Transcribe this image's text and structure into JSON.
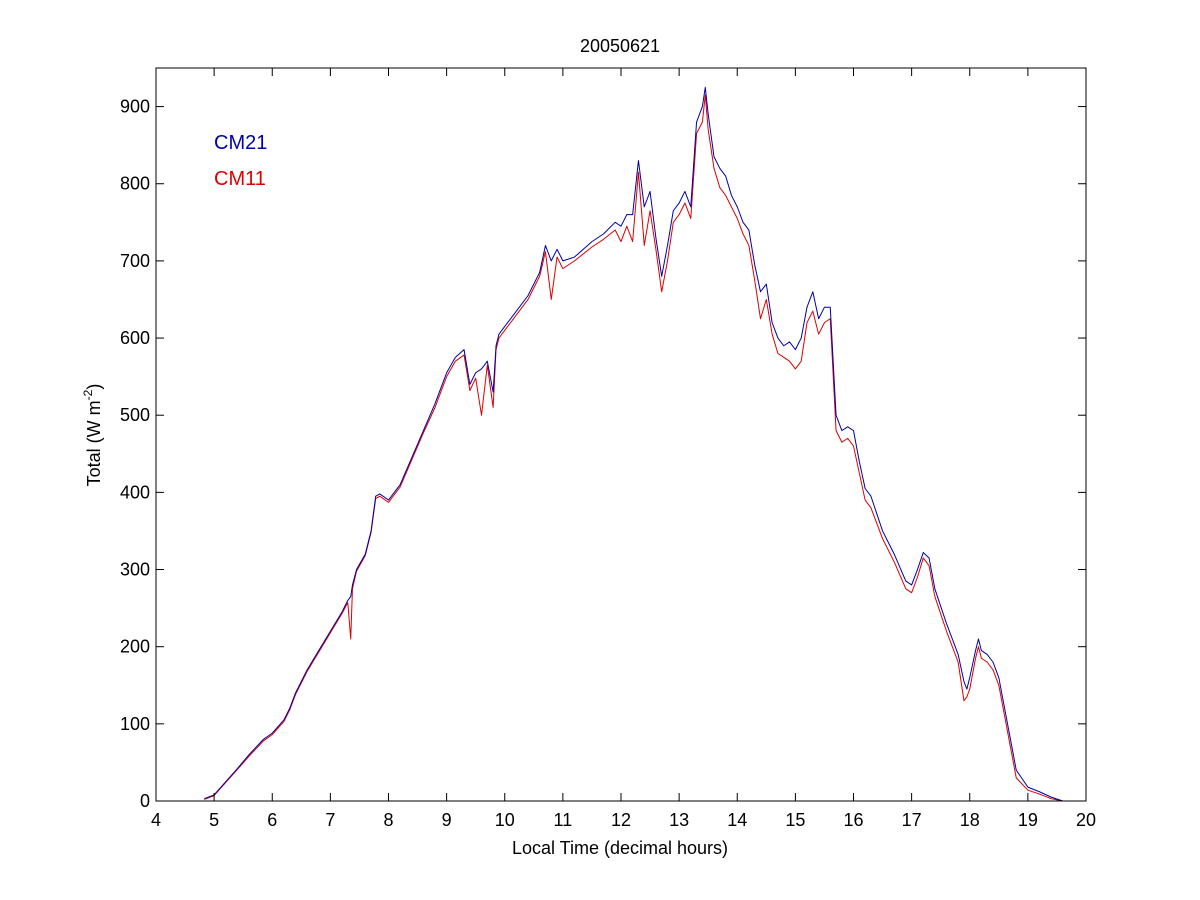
{
  "chart_data": {
    "type": "line",
    "title": "20050621",
    "xlabel": "Local Time (decimal hours)",
    "ylabel": {
      "prefix": "Total (W m",
      "superscript": "-2",
      "suffix": ")"
    },
    "xlim": [
      4,
      20
    ],
    "ylim": [
      0,
      950
    ],
    "xticks": [
      4,
      5,
      6,
      7,
      8,
      9,
      10,
      11,
      12,
      13,
      14,
      15,
      16,
      17,
      18,
      19,
      20
    ],
    "yticks": [
      0,
      100,
      200,
      300,
      400,
      500,
      600,
      700,
      800,
      900
    ],
    "grid": false,
    "legend": {
      "placement": "top-left",
      "style": "colored text"
    },
    "series": [
      {
        "name": "CM21",
        "color": "#0000aa",
        "x": [
          4.83,
          5.0,
          5.2,
          5.4,
          5.6,
          5.85,
          6.0,
          6.2,
          6.3,
          6.4,
          6.6,
          6.8,
          7.0,
          7.2,
          7.3,
          7.35,
          7.38,
          7.45,
          7.6,
          7.7,
          7.78,
          7.85,
          8.0,
          8.2,
          8.4,
          8.6,
          8.8,
          9.0,
          9.15,
          9.3,
          9.4,
          9.5,
          9.6,
          9.7,
          9.8,
          9.85,
          9.9,
          10.0,
          10.2,
          10.4,
          10.6,
          10.7,
          10.8,
          10.9,
          11.0,
          11.2,
          11.5,
          11.7,
          11.9,
          12.0,
          12.1,
          12.2,
          12.3,
          12.4,
          12.5,
          12.6,
          12.7,
          12.8,
          12.9,
          13.0,
          13.1,
          13.2,
          13.3,
          13.4,
          13.45,
          13.5,
          13.6,
          13.7,
          13.8,
          13.9,
          14.0,
          14.1,
          14.2,
          14.3,
          14.4,
          14.5,
          14.6,
          14.7,
          14.8,
          14.9,
          15.0,
          15.1,
          15.2,
          15.3,
          15.4,
          15.5,
          15.6,
          15.7,
          15.8,
          15.9,
          16.0,
          16.1,
          16.2,
          16.3,
          16.5,
          16.7,
          16.9,
          17.0,
          17.1,
          17.2,
          17.3,
          17.4,
          17.6,
          17.8,
          17.9,
          17.95,
          18.0,
          18.1,
          18.15,
          18.2,
          18.3,
          18.4,
          18.5,
          18.6,
          18.7,
          18.8,
          19.0,
          19.2,
          19.4,
          19.6
        ],
        "y": [
          3,
          8,
          25,
          42,
          60,
          80,
          88,
          105,
          120,
          140,
          170,
          195,
          220,
          245,
          260,
          265,
          280,
          300,
          320,
          350,
          395,
          398,
          390,
          410,
          445,
          480,
          515,
          555,
          575,
          585,
          540,
          555,
          560,
          570,
          530,
          590,
          605,
          615,
          635,
          655,
          685,
          720,
          700,
          715,
          700,
          705,
          725,
          735,
          750,
          745,
          760,
          760,
          830,
          770,
          790,
          730,
          680,
          720,
          765,
          775,
          790,
          770,
          880,
          900,
          925,
          890,
          835,
          820,
          810,
          785,
          770,
          750,
          740,
          695,
          660,
          670,
          620,
          600,
          590,
          595,
          585,
          600,
          640,
          660,
          625,
          640,
          640,
          500,
          480,
          485,
          480,
          440,
          405,
          395,
          350,
          320,
          285,
          280,
          300,
          322,
          315,
          275,
          230,
          190,
          155,
          145,
          160,
          195,
          210,
          195,
          190,
          180,
          160,
          120,
          80,
          40,
          18,
          12,
          5,
          0
        ]
      },
      {
        "name": "CM11",
        "color": "#dd0000",
        "x": [
          4.83,
          5.0,
          5.2,
          5.4,
          5.6,
          5.85,
          6.0,
          6.2,
          6.3,
          6.4,
          6.6,
          6.8,
          7.0,
          7.2,
          7.3,
          7.35,
          7.38,
          7.45,
          7.6,
          7.7,
          7.78,
          7.85,
          8.0,
          8.2,
          8.4,
          8.6,
          8.8,
          9.0,
          9.15,
          9.3,
          9.4,
          9.5,
          9.6,
          9.7,
          9.8,
          9.85,
          9.9,
          10.0,
          10.2,
          10.4,
          10.6,
          10.7,
          10.8,
          10.9,
          11.0,
          11.2,
          11.5,
          11.7,
          11.9,
          12.0,
          12.1,
          12.2,
          12.3,
          12.4,
          12.5,
          12.6,
          12.7,
          12.8,
          12.9,
          13.0,
          13.1,
          13.2,
          13.3,
          13.4,
          13.45,
          13.5,
          13.6,
          13.7,
          13.8,
          13.9,
          14.0,
          14.1,
          14.2,
          14.3,
          14.4,
          14.5,
          14.6,
          14.7,
          14.8,
          14.9,
          15.0,
          15.1,
          15.2,
          15.3,
          15.4,
          15.5,
          15.6,
          15.7,
          15.8,
          15.9,
          16.0,
          16.1,
          16.2,
          16.3,
          16.5,
          16.7,
          16.9,
          17.0,
          17.1,
          17.2,
          17.3,
          17.4,
          17.6,
          17.8,
          17.9,
          17.95,
          18.0,
          18.1,
          18.15,
          18.2,
          18.3,
          18.4,
          18.5,
          18.6,
          18.7,
          18.8,
          19.0,
          19.2,
          19.4,
          19.6
        ],
        "y": [
          2,
          7,
          24,
          41,
          58,
          78,
          86,
          103,
          118,
          138,
          168,
          193,
          218,
          243,
          257,
          210,
          275,
          298,
          318,
          348,
          392,
          395,
          387,
          407,
          442,
          477,
          510,
          550,
          570,
          578,
          532,
          548,
          500,
          565,
          510,
          585,
          600,
          610,
          630,
          650,
          680,
          712,
          650,
          705,
          690,
          700,
          718,
          728,
          740,
          725,
          745,
          725,
          815,
          720,
          765,
          715,
          660,
          700,
          750,
          760,
          775,
          755,
          865,
          880,
          915,
          870,
          820,
          795,
          785,
          770,
          755,
          735,
          720,
          675,
          625,
          650,
          605,
          580,
          575,
          570,
          560,
          570,
          620,
          635,
          605,
          620,
          625,
          480,
          465,
          470,
          460,
          425,
          390,
          380,
          340,
          310,
          275,
          270,
          290,
          315,
          305,
          265,
          220,
          180,
          130,
          135,
          145,
          185,
          200,
          185,
          180,
          170,
          150,
          110,
          70,
          30,
          14,
          9,
          3,
          0
        ]
      }
    ]
  }
}
